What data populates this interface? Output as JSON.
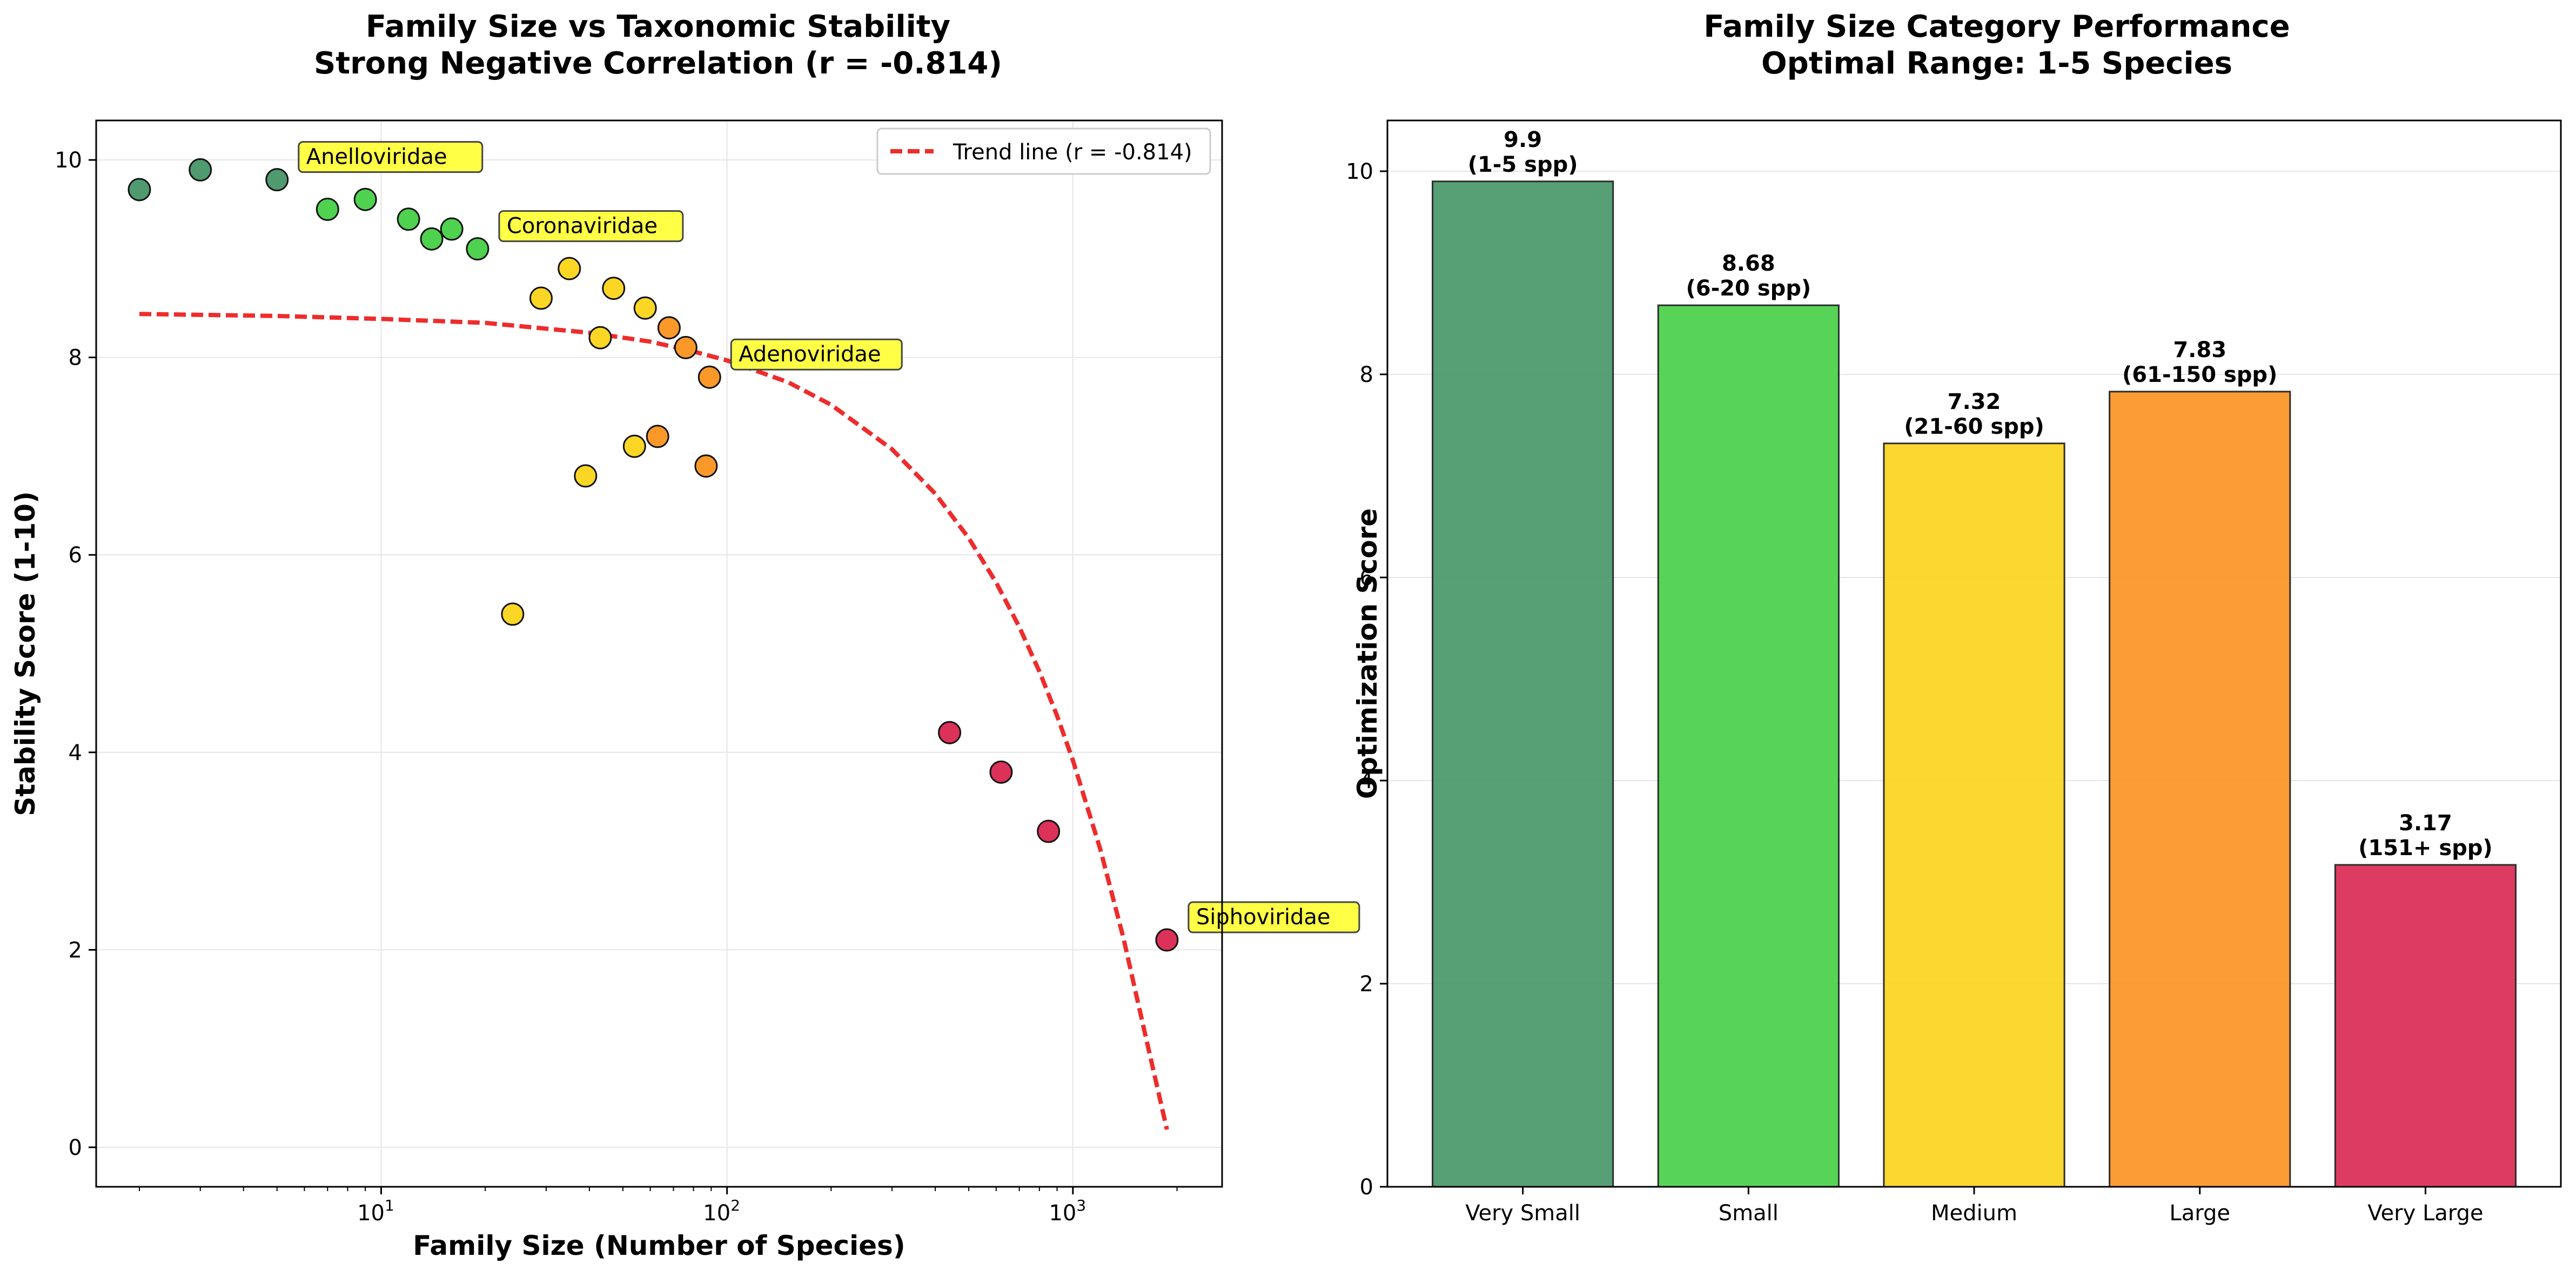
{
  "chart_data": [
    {
      "type": "scatter",
      "title": "Family Size vs Taxonomic Stability",
      "subtitle": "Strong Negative Correlation (r = -0.814)",
      "xlabel": "Family Size (Number of Species)",
      "ylabel": "Stability Score (1-10)",
      "xscale": "log",
      "xlim": [
        1.5,
        2700
      ],
      "ylim": [
        -0.4,
        10.4
      ],
      "x_ticks": [
        10,
        100,
        1000
      ],
      "x_tick_labels": [
        "10",
        "2",
        "3"
      ],
      "y_ticks": [
        0,
        2,
        4,
        6,
        8,
        10
      ],
      "y_tick_labels": [
        "0",
        "2",
        "4",
        "6",
        "8",
        "10"
      ],
      "grid": true,
      "legend_position": "top-right",
      "colors": {
        "very_small": "#4f9a6e",
        "small": "#4fd24f",
        "medium": "#fbd624",
        "large": "#fb982a",
        "very_large": "#dc3159",
        "trend": "#ee2c2c",
        "annotation_bg": "#ffff45"
      },
      "points": [
        {
          "x": 2,
          "y": 9.7,
          "cat": "very_small"
        },
        {
          "x": 3,
          "y": 9.9,
          "cat": "very_small"
        },
        {
          "x": 5,
          "y": 9.8,
          "cat": "very_small"
        },
        {
          "x": 7,
          "y": 9.5,
          "cat": "small"
        },
        {
          "x": 9,
          "y": 9.6,
          "cat": "small"
        },
        {
          "x": 12,
          "y": 9.4,
          "cat": "small"
        },
        {
          "x": 14,
          "y": 9.2,
          "cat": "small"
        },
        {
          "x": 16,
          "y": 9.3,
          "cat": "small"
        },
        {
          "x": 19,
          "y": 9.1,
          "cat": "small"
        },
        {
          "x": 24,
          "y": 5.4,
          "cat": "medium"
        },
        {
          "x": 29,
          "y": 8.6,
          "cat": "medium"
        },
        {
          "x": 35,
          "y": 8.9,
          "cat": "medium"
        },
        {
          "x": 39,
          "y": 6.8,
          "cat": "medium"
        },
        {
          "x": 43,
          "y": 8.2,
          "cat": "medium"
        },
        {
          "x": 47,
          "y": 8.7,
          "cat": "medium"
        },
        {
          "x": 54,
          "y": 7.1,
          "cat": "medium"
        },
        {
          "x": 58,
          "y": 8.5,
          "cat": "medium"
        },
        {
          "x": 63,
          "y": 7.2,
          "cat": "large"
        },
        {
          "x": 68,
          "y": 8.3,
          "cat": "large"
        },
        {
          "x": 76,
          "y": 8.1,
          "cat": "large"
        },
        {
          "x": 87,
          "y": 6.9,
          "cat": "large"
        },
        {
          "x": 89,
          "y": 7.8,
          "cat": "large"
        },
        {
          "x": 440,
          "y": 4.2,
          "cat": "very_large"
        },
        {
          "x": 620,
          "y": 3.8,
          "cat": "very_large"
        },
        {
          "x": 850,
          "y": 3.2,
          "cat": "very_large"
        },
        {
          "x": 1870,
          "y": 2.1,
          "cat": "very_large"
        }
      ],
      "annotations": [
        {
          "text": "Anelloviridae",
          "x": 5,
          "y": 9.8
        },
        {
          "text": "Coronaviridae",
          "x": 19,
          "y": 9.1
        },
        {
          "text": "Adenoviridae",
          "x": 89,
          "y": 7.8
        },
        {
          "text": "Siphoviridae",
          "x": 1870,
          "y": 2.1
        }
      ],
      "trend": {
        "name": "Trend line (r = -0.814)",
        "x": [
          2,
          5,
          10,
          20,
          40,
          60,
          80,
          100,
          150,
          200,
          300,
          400,
          500,
          600,
          700,
          800,
          900,
          1000,
          1200,
          1400,
          1600,
          1870
        ],
        "y": [
          8.44,
          8.42,
          8.39,
          8.35,
          8.25,
          8.16,
          8.06,
          7.97,
          7.75,
          7.52,
          7.07,
          6.62,
          6.17,
          5.72,
          5.27,
          4.82,
          4.37,
          3.92,
          3.02,
          2.12,
          1.22,
          0.18
        ]
      }
    },
    {
      "type": "bar",
      "title": "Family Size Category Performance",
      "subtitle": "Optimal Range: 1-5 Species",
      "xlabel": "",
      "ylabel": "Optimization Score",
      "ylim": [
        0,
        10.5
      ],
      "y_ticks": [
        0,
        2,
        4,
        6,
        8,
        10
      ],
      "y_tick_labels": [
        "0",
        "2",
        "4",
        "6",
        "8",
        "10"
      ],
      "grid": true,
      "categories": [
        "Very Small",
        "Small",
        "Medium",
        "Large",
        "Very Large"
      ],
      "values": [
        9.9,
        8.68,
        7.32,
        7.83,
        3.17
      ],
      "value_labels": [
        "9.9",
        "8.68",
        "7.32",
        "7.83",
        "3.17"
      ],
      "range_labels": [
        "(1-5 spp)",
        "(6-20 spp)",
        "(21-60 spp)",
        "(61-150 spp)",
        "(151+ spp)"
      ],
      "colors": [
        "#4f9a6e",
        "#4fd24f",
        "#fbd624",
        "#fb982a",
        "#dc3159"
      ]
    }
  ]
}
